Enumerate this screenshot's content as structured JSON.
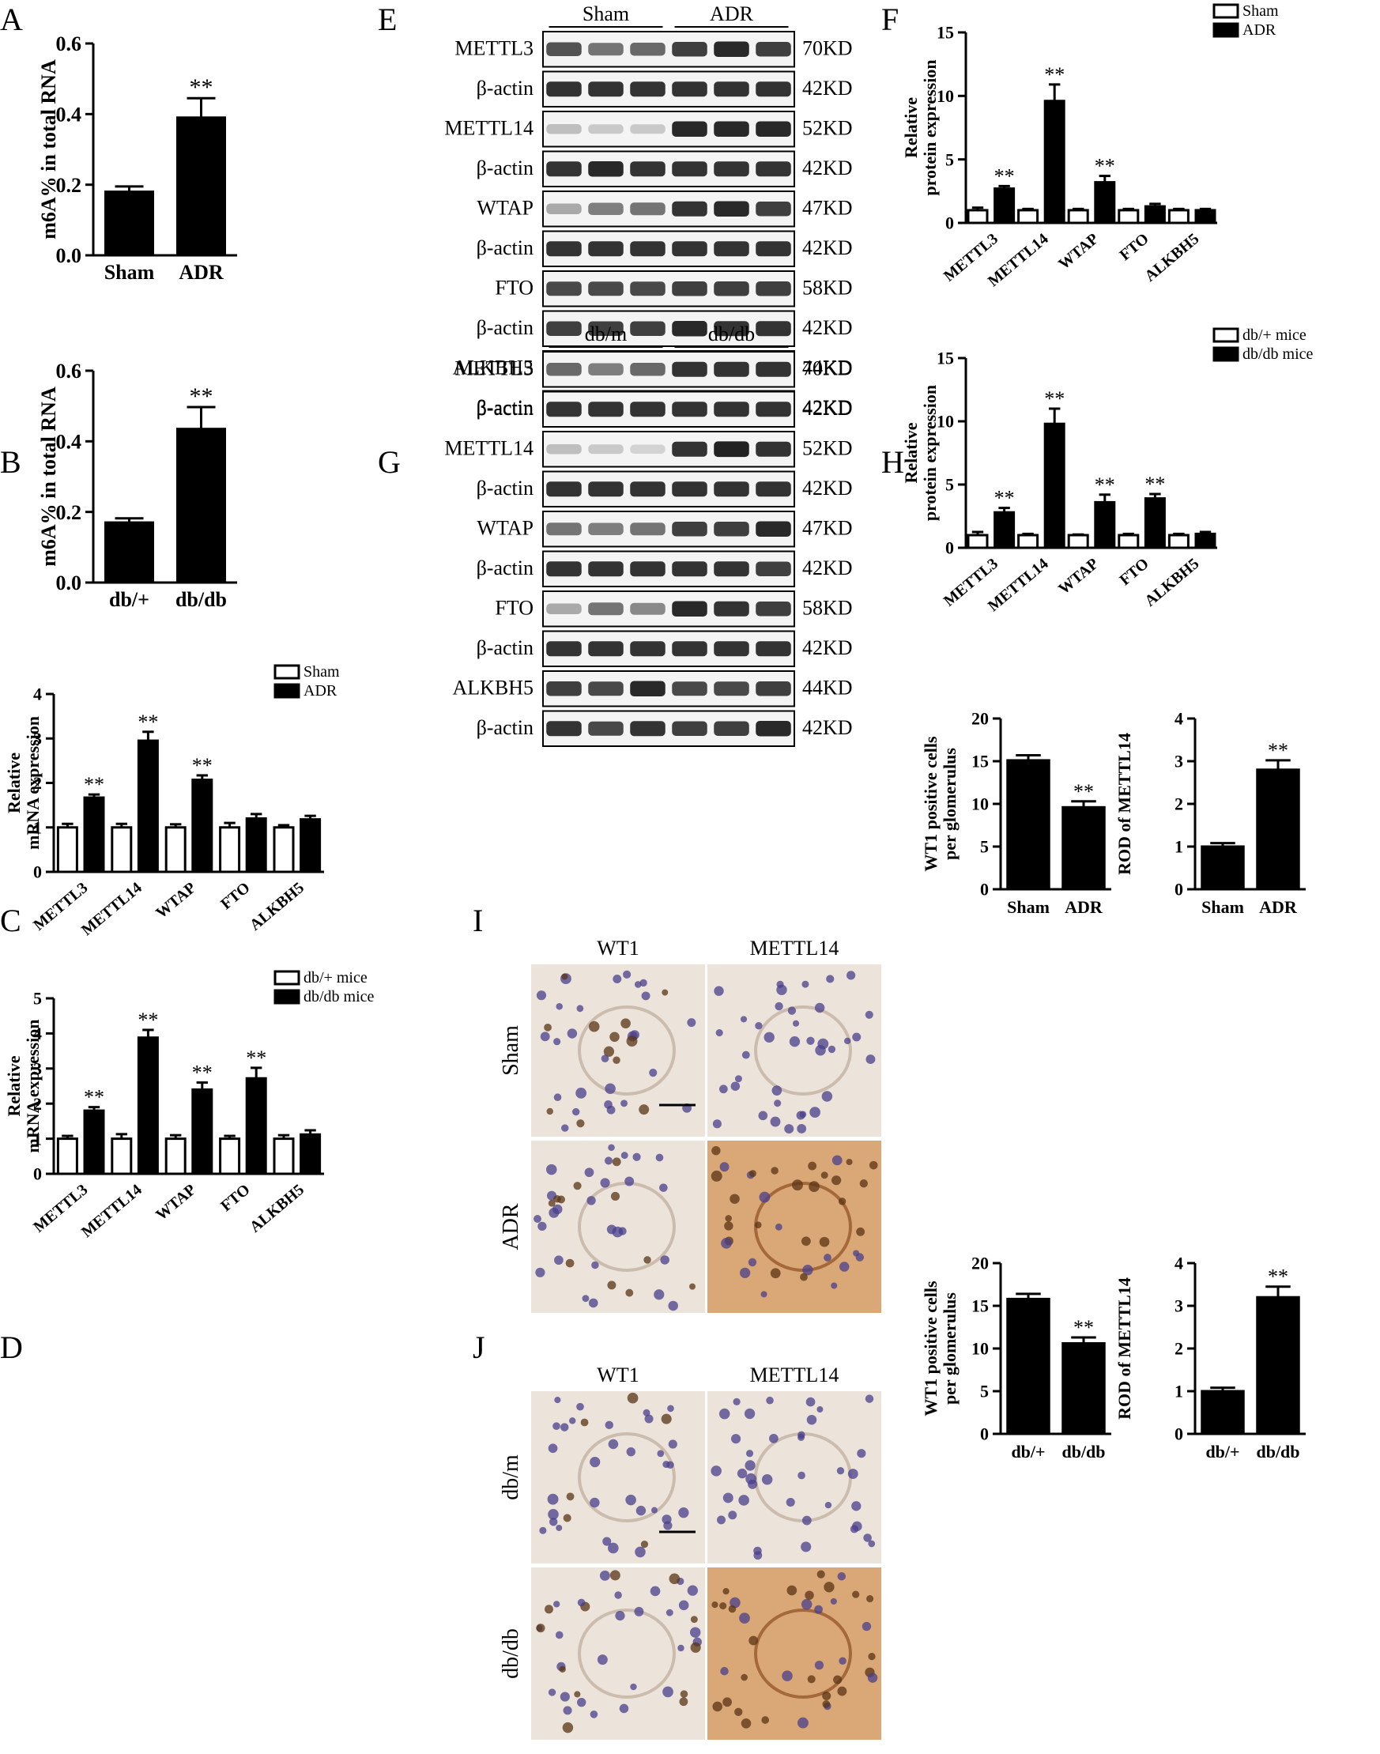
{
  "panel_labels": [
    "A",
    "B",
    "C",
    "D",
    "E",
    "F",
    "G",
    "H",
    "I",
    "J"
  ],
  "significance_mark": "**",
  "colors": {
    "bar_fill": "#000000",
    "control_fill": "#ffffff",
    "line": "#000000",
    "blot_band": "#1e1e1e",
    "ihc_brown": "#b7763a",
    "ihc_nuclear_blue": "#4a3f8c"
  },
  "chart_data": [
    {
      "id": "A",
      "type": "bar",
      "categories": [
        "Sham",
        "ADR"
      ],
      "values": [
        0.18,
        0.39
      ],
      "errors": [
        0.015,
        0.055
      ],
      "sig": [
        false,
        true
      ],
      "ylabel": "m6A% in total RNA",
      "ylim": [
        0,
        0.6
      ],
      "yticks": [
        "0.0",
        "0.2",
        "0.4",
        "0.6"
      ],
      "grid": false
    },
    {
      "id": "B",
      "type": "bar",
      "categories": [
        "db/+",
        "db/db"
      ],
      "values": [
        0.17,
        0.435
      ],
      "errors": [
        0.012,
        0.062
      ],
      "sig": [
        false,
        true
      ],
      "ylabel": "m6A% in total RNA",
      "ylim": [
        0,
        0.6
      ],
      "yticks": [
        "0.0",
        "0.2",
        "0.4",
        "0.6"
      ],
      "grid": false
    },
    {
      "id": "C",
      "type": "bar",
      "categories": [
        "METTL3",
        "METTL14",
        "WTAP",
        "FTO",
        "ALKBH5"
      ],
      "ylabel": [
        "Relative",
        "mRNA expression"
      ],
      "ylim": [
        0,
        4
      ],
      "yticks": [
        "0",
        "1",
        "2",
        "3",
        "4"
      ],
      "legend_position": "top-right",
      "grid": false,
      "series": [
        {
          "name": "Sham",
          "values": [
            1.0,
            1.0,
            1.0,
            1.0,
            1.0
          ],
          "errors": [
            0.08,
            0.08,
            0.07,
            0.1,
            0.05
          ],
          "sig": [
            false,
            false,
            false,
            false,
            false
          ]
        },
        {
          "name": "ADR",
          "values": [
            1.67,
            2.95,
            2.07,
            1.2,
            1.18
          ],
          "errors": [
            0.07,
            0.2,
            0.1,
            0.1,
            0.08
          ],
          "sig": [
            true,
            true,
            true,
            false,
            false
          ]
        }
      ]
    },
    {
      "id": "D",
      "type": "bar",
      "categories": [
        "METTL3",
        "METTL14",
        "WTAP",
        "FTO",
        "ALKBH5"
      ],
      "ylabel": [
        "Relative",
        "mRNA expression"
      ],
      "ylim": [
        0,
        5
      ],
      "yticks": [
        "0",
        "1",
        "2",
        "3",
        "4",
        "5"
      ],
      "legend_position": "top-right",
      "grid": false,
      "series": [
        {
          "name": "db/+ mice",
          "values": [
            1.0,
            1.0,
            1.0,
            1.0,
            1.0
          ],
          "errors": [
            0.08,
            0.13,
            0.1,
            0.08,
            0.1
          ],
          "sig": [
            false,
            false,
            false,
            false,
            false
          ]
        },
        {
          "name": "db/db mice",
          "values": [
            1.8,
            3.88,
            2.4,
            2.72,
            1.12
          ],
          "errors": [
            0.1,
            0.22,
            0.2,
            0.3,
            0.12
          ],
          "sig": [
            true,
            true,
            true,
            true,
            false
          ]
        }
      ]
    },
    {
      "id": "F",
      "type": "bar",
      "categories": [
        "METTL3",
        "METTL14",
        "WTAP",
        "FTO",
        "ALKBH5"
      ],
      "ylabel": [
        "Relative",
        "protein expression"
      ],
      "ylim": [
        0,
        15
      ],
      "yticks": [
        "0",
        "5",
        "10",
        "15"
      ],
      "legend_position": "top-right",
      "grid": false,
      "series": [
        {
          "name": "Sham",
          "values": [
            1.0,
            1.0,
            1.0,
            1.0,
            1.0
          ],
          "errors": [
            0.2,
            0.1,
            0.1,
            0.1,
            0.1
          ],
          "sig": [
            false,
            false,
            false,
            false,
            false
          ]
        },
        {
          "name": "ADR",
          "values": [
            2.7,
            9.6,
            3.2,
            1.3,
            1.0
          ],
          "errors": [
            0.2,
            1.3,
            0.5,
            0.2,
            0.1
          ],
          "sig": [
            true,
            true,
            true,
            false,
            false
          ]
        }
      ]
    },
    {
      "id": "H",
      "type": "bar",
      "categories": [
        "METTL3",
        "METTL14",
        "WTAP",
        "FTO",
        "ALKBH5"
      ],
      "ylabel": [
        "Relative",
        "protein expression"
      ],
      "ylim": [
        0,
        15
      ],
      "yticks": [
        "0",
        "5",
        "10",
        "15"
      ],
      "legend_position": "top-right",
      "grid": false,
      "series": [
        {
          "name": "db/+ mice",
          "values": [
            1.0,
            1.0,
            1.0,
            1.0,
            1.0
          ],
          "errors": [
            0.25,
            0.1,
            0.05,
            0.1,
            0.1
          ],
          "sig": [
            false,
            false,
            false,
            false,
            false
          ]
        },
        {
          "name": "db/db mice",
          "values": [
            2.8,
            9.8,
            3.6,
            3.9,
            1.1
          ],
          "errors": [
            0.35,
            1.2,
            0.6,
            0.35,
            0.15
          ],
          "sig": [
            true,
            true,
            true,
            true,
            false
          ]
        }
      ]
    },
    {
      "id": "I1",
      "type": "bar",
      "categories": [
        "Sham",
        "ADR"
      ],
      "values": [
        15.1,
        9.6
      ],
      "errors": [
        0.6,
        0.7
      ],
      "sig": [
        false,
        true
      ],
      "ylabel": [
        "WT1 positive cells",
        "per glomerulus"
      ],
      "ylim": [
        0,
        20
      ],
      "yticks": [
        "0",
        "5",
        "10",
        "15",
        "20"
      ],
      "grid": false
    },
    {
      "id": "I2",
      "type": "bar",
      "categories": [
        "Sham",
        "ADR"
      ],
      "values": [
        1.0,
        2.8
      ],
      "errors": [
        0.08,
        0.22
      ],
      "sig": [
        false,
        true
      ],
      "ylabel": "ROD of METTL14",
      "ylim": [
        0,
        4
      ],
      "yticks": [
        "0",
        "1",
        "2",
        "3",
        "4"
      ],
      "grid": false
    },
    {
      "id": "J1",
      "type": "bar",
      "categories": [
        "db/+",
        "db/db"
      ],
      "values": [
        15.8,
        10.6
      ],
      "errors": [
        0.6,
        0.7
      ],
      "sig": [
        false,
        true
      ],
      "ylabel": [
        "WT1 positive cells",
        "per glomerulus"
      ],
      "ylim": [
        0,
        20
      ],
      "yticks": [
        "0",
        "5",
        "10",
        "15",
        "20"
      ],
      "grid": false
    },
    {
      "id": "J2",
      "type": "bar",
      "categories": [
        "db/+",
        "db/db"
      ],
      "values": [
        1.0,
        3.2
      ],
      "errors": [
        0.08,
        0.25
      ],
      "sig": [
        false,
        true
      ],
      "ylabel": "ROD of METTL14",
      "ylim": [
        0,
        4
      ],
      "yticks": [
        "0",
        "1",
        "2",
        "3",
        "4"
      ],
      "grid": false
    }
  ],
  "blots": [
    {
      "id": "E",
      "groups": [
        "Sham",
        "ADR"
      ],
      "rows": [
        {
          "protein": "METTL3",
          "size": "70KD",
          "intensity": [
            0.75,
            0.6,
            0.65,
            0.85,
            0.95,
            0.85
          ]
        },
        {
          "protein": "β-actin",
          "size": "42KD",
          "intensity": [
            0.9,
            0.9,
            0.9,
            0.9,
            0.9,
            0.9
          ]
        },
        {
          "protein": "METTL14",
          "size": "52KD",
          "intensity": [
            0.25,
            0.2,
            0.2,
            0.95,
            0.95,
            0.95
          ]
        },
        {
          "protein": "β-actin",
          "size": "42KD",
          "intensity": [
            0.9,
            0.95,
            0.9,
            0.9,
            0.9,
            0.9
          ]
        },
        {
          "protein": "WTAP",
          "size": "47KD",
          "intensity": [
            0.35,
            0.55,
            0.6,
            0.9,
            0.95,
            0.85
          ]
        },
        {
          "protein": "β-actin",
          "size": "42KD",
          "intensity": [
            0.9,
            0.9,
            0.9,
            0.9,
            0.9,
            0.9
          ]
        },
        {
          "protein": "FTO",
          "size": "58KD",
          "intensity": [
            0.8,
            0.8,
            0.8,
            0.85,
            0.85,
            0.85
          ]
        },
        {
          "protein": "β-actin",
          "size": "42KD",
          "intensity": [
            0.85,
            0.85,
            0.85,
            0.95,
            0.9,
            0.9
          ]
        },
        {
          "protein": "ALKBH5",
          "size": "44KD",
          "intensity": [
            0.85,
            0.9,
            0.9,
            0.8,
            0.75,
            0.9
          ]
        },
        {
          "protein": "β-actin",
          "size": "42KD",
          "intensity": [
            0.9,
            0.9,
            0.9,
            0.9,
            0.9,
            0.95
          ]
        }
      ]
    },
    {
      "id": "G",
      "groups": [
        "db/m",
        "db/db"
      ],
      "rows": [
        {
          "protein": "METTL3",
          "size": "70KD",
          "intensity": [
            0.65,
            0.55,
            0.65,
            0.9,
            0.9,
            0.9
          ]
        },
        {
          "protein": "β-actin",
          "size": "42KD",
          "intensity": [
            0.9,
            0.9,
            0.9,
            0.9,
            0.9,
            0.9
          ]
        },
        {
          "protein": "METTL14",
          "size": "52KD",
          "intensity": [
            0.25,
            0.2,
            0.15,
            0.9,
            0.98,
            0.9
          ]
        },
        {
          "protein": "β-actin",
          "size": "42KD",
          "intensity": [
            0.9,
            0.9,
            0.9,
            0.9,
            0.9,
            0.9
          ]
        },
        {
          "protein": "WTAP",
          "size": "47KD",
          "intensity": [
            0.6,
            0.55,
            0.6,
            0.85,
            0.85,
            0.95
          ]
        },
        {
          "protein": "β-actin",
          "size": "42KD",
          "intensity": [
            0.9,
            0.9,
            0.9,
            0.9,
            0.9,
            0.85
          ]
        },
        {
          "protein": "FTO",
          "size": "58KD",
          "intensity": [
            0.35,
            0.6,
            0.5,
            0.95,
            0.9,
            0.85
          ]
        },
        {
          "protein": "β-actin",
          "size": "42KD",
          "intensity": [
            0.9,
            0.9,
            0.9,
            0.9,
            0.9,
            0.9
          ]
        },
        {
          "protein": "ALKBH5",
          "size": "44KD",
          "intensity": [
            0.85,
            0.8,
            0.95,
            0.8,
            0.8,
            0.85
          ]
        },
        {
          "protein": "β-actin",
          "size": "42KD",
          "intensity": [
            0.9,
            0.8,
            0.9,
            0.85,
            0.85,
            0.95
          ]
        }
      ]
    }
  ],
  "micrographs": [
    {
      "id": "I",
      "columns": [
        "WT1",
        "METTL14"
      ],
      "rows": [
        "Sham",
        "ADR"
      ]
    },
    {
      "id": "J",
      "columns": [
        "WT1",
        "METTL14"
      ],
      "rows": [
        "db/m",
        "db/db"
      ]
    }
  ]
}
